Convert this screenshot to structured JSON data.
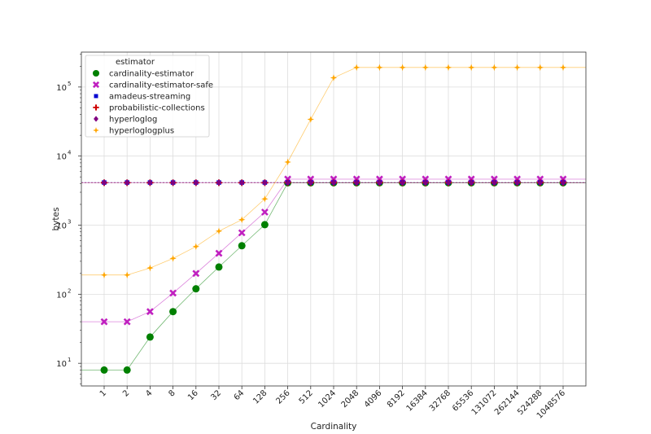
{
  "chart_data": {
    "type": "scatter",
    "xlabel": "Cardinality",
    "ylabel": "bytes",
    "yscale": "log",
    "grid": true,
    "legend": {
      "title": "estimator",
      "placement": "top-left"
    },
    "x_ticks": [
      "1",
      "2",
      "4",
      "8",
      "16",
      "32",
      "64",
      "128",
      "256",
      "512",
      "1024",
      "2048",
      "4096",
      "8192",
      "16384",
      "32768",
      "65536",
      "131072",
      "262144",
      "524288",
      "1048576"
    ],
    "y_ticks": [
      {
        "base": "10",
        "exp": "1",
        "value": 10
      },
      {
        "base": "10",
        "exp": "2",
        "value": 100
      },
      {
        "base": "10",
        "exp": "3",
        "value": 1000
      },
      {
        "base": "10",
        "exp": "4",
        "value": 10000
      },
      {
        "base": "10",
        "exp": "5",
        "value": 100000
      }
    ],
    "ylim": [
      4.7,
      320000
    ],
    "series": [
      {
        "name": "cardinality-estimator",
        "color": "#008000",
        "marker": "circle",
        "values": [
          8,
          8,
          24,
          56,
          120,
          248,
          504,
          1016,
          4104,
          4104,
          4104,
          4104,
          4104,
          4104,
          4104,
          4104,
          4104,
          4104,
          4104,
          4104,
          4104
        ]
      },
      {
        "name": "cardinality-estimator-safe",
        "color": "#c020c0",
        "marker": "x",
        "values": [
          40,
          40,
          56,
          104,
          200,
          392,
          776,
          1544,
          4640,
          4640,
          4640,
          4640,
          4640,
          4640,
          4640,
          4640,
          4640,
          4640,
          4640,
          4640,
          4640
        ]
      },
      {
        "name": "amadeus-streaming",
        "color": "#0000d0",
        "marker": "square",
        "values": [
          4144,
          4144,
          4144,
          4144,
          4144,
          4144,
          4144,
          4144,
          4144,
          4144,
          4144,
          4144,
          4144,
          4144,
          4144,
          4144,
          4144,
          4144,
          4144,
          4144,
          4144
        ]
      },
      {
        "name": "probabilistic-collections",
        "color": "#d00000",
        "marker": "plus",
        "values": [
          4120,
          4120,
          4120,
          4120,
          4120,
          4120,
          4120,
          4120,
          4120,
          4120,
          4120,
          4120,
          4120,
          4120,
          4120,
          4120,
          4120,
          4120,
          4120,
          4120,
          4120
        ]
      },
      {
        "name": "hyperloglog",
        "color": "#800080",
        "marker": "diamond",
        "values": [
          4130,
          4130,
          4130,
          4130,
          4130,
          4130,
          4130,
          4130,
          4130,
          4130,
          4130,
          4130,
          4130,
          4130,
          4130,
          4130,
          4130,
          4130,
          4130,
          4130,
          4130
        ]
      },
      {
        "name": "hyperloglogplus",
        "color": "#ffa500",
        "marker": "star",
        "values": [
          190,
          190,
          240,
          330,
          490,
          820,
          1200,
          2400,
          8200,
          34000,
          136000,
          192000,
          192000,
          192000,
          192000,
          192000,
          192000,
          192000,
          192000,
          192000,
          192000
        ]
      }
    ]
  }
}
